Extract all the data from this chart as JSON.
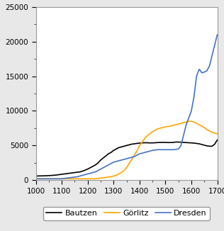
{
  "title": "",
  "xlim": [
    1000,
    1700
  ],
  "ylim": [
    0,
    25000
  ],
  "xticks": [
    1000,
    1100,
    1200,
    1300,
    1400,
    1500,
    1600,
    1700
  ],
  "yticks": [
    0,
    5000,
    10000,
    15000,
    20000,
    25000
  ],
  "background_color": "#e8e8e8",
  "plot_background": "#ffffff",
  "bautzen": {
    "color": "#000000",
    "label": "Bautzen",
    "x": [
      1000,
      1010,
      1020,
      1030,
      1040,
      1050,
      1060,
      1070,
      1080,
      1090,
      1100,
      1110,
      1120,
      1130,
      1140,
      1150,
      1160,
      1170,
      1180,
      1190,
      1200,
      1210,
      1220,
      1230,
      1240,
      1250,
      1260,
      1270,
      1280,
      1290,
      1300,
      1310,
      1320,
      1330,
      1340,
      1350,
      1360,
      1370,
      1380,
      1390,
      1400,
      1410,
      1420,
      1430,
      1440,
      1450,
      1460,
      1470,
      1480,
      1490,
      1500,
      1510,
      1520,
      1530,
      1540,
      1550,
      1560,
      1570,
      1580,
      1590,
      1600,
      1610,
      1620,
      1630,
      1640,
      1650,
      1660,
      1670,
      1680,
      1690,
      1700
    ],
    "y": [
      600,
      610,
      620,
      630,
      640,
      660,
      680,
      710,
      750,
      800,
      850,
      900,
      950,
      1000,
      1050,
      1100,
      1150,
      1200,
      1300,
      1450,
      1600,
      1800,
      2000,
      2200,
      2500,
      2900,
      3200,
      3500,
      3800,
      4000,
      4300,
      4500,
      4700,
      4800,
      4900,
      5000,
      5100,
      5200,
      5250,
      5300,
      5350,
      5380,
      5400,
      5400,
      5380,
      5380,
      5400,
      5430,
      5450,
      5450,
      5450,
      5430,
      5430,
      5450,
      5500,
      5500,
      5480,
      5450,
      5430,
      5400,
      5380,
      5350,
      5300,
      5250,
      5150,
      5050,
      4950,
      4900,
      4900,
      5200,
      5800
    ]
  },
  "gorlitz": {
    "color": "#ffa500",
    "label": "Görlitz",
    "x": [
      1000,
      1010,
      1020,
      1030,
      1040,
      1050,
      1060,
      1070,
      1080,
      1090,
      1100,
      1110,
      1120,
      1130,
      1140,
      1150,
      1160,
      1170,
      1180,
      1190,
      1200,
      1210,
      1220,
      1230,
      1240,
      1250,
      1260,
      1270,
      1280,
      1290,
      1300,
      1310,
      1320,
      1330,
      1340,
      1350,
      1360,
      1370,
      1380,
      1390,
      1400,
      1410,
      1420,
      1430,
      1440,
      1450,
      1460,
      1470,
      1480,
      1490,
      1500,
      1510,
      1520,
      1530,
      1540,
      1550,
      1560,
      1570,
      1580,
      1590,
      1600,
      1610,
      1620,
      1630,
      1640,
      1650,
      1660,
      1670,
      1680,
      1690,
      1700
    ],
    "y": [
      200,
      200,
      200,
      200,
      200,
      200,
      200,
      200,
      200,
      200,
      200,
      200,
      200,
      200,
      200,
      200,
      200,
      200,
      200,
      200,
      200,
      200,
      200,
      200,
      250,
      300,
      350,
      400,
      450,
      500,
      600,
      700,
      900,
      1100,
      1400,
      1800,
      2400,
      3000,
      3600,
      4200,
      5000,
      5500,
      6000,
      6400,
      6700,
      7000,
      7200,
      7400,
      7500,
      7600,
      7700,
      7750,
      7800,
      7900,
      8000,
      8100,
      8200,
      8300,
      8400,
      8500,
      8500,
      8400,
      8200,
      8000,
      7800,
      7600,
      7300,
      7100,
      6900,
      6800,
      6700
    ]
  },
  "dresden": {
    "color": "#4472c4",
    "label": "Dresden",
    "x": [
      1000,
      1010,
      1020,
      1030,
      1040,
      1050,
      1060,
      1070,
      1080,
      1090,
      1100,
      1110,
      1120,
      1130,
      1140,
      1150,
      1160,
      1170,
      1180,
      1190,
      1200,
      1210,
      1220,
      1230,
      1240,
      1250,
      1260,
      1270,
      1280,
      1290,
      1300,
      1310,
      1320,
      1330,
      1340,
      1350,
      1360,
      1370,
      1380,
      1390,
      1400,
      1410,
      1420,
      1430,
      1440,
      1450,
      1460,
      1470,
      1480,
      1490,
      1500,
      1510,
      1520,
      1530,
      1540,
      1550,
      1560,
      1570,
      1580,
      1590,
      1600,
      1610,
      1620,
      1625,
      1630,
      1635,
      1640,
      1650,
      1660,
      1670,
      1680,
      1690,
      1700
    ],
    "y": [
      200,
      200,
      200,
      200,
      200,
      200,
      200,
      200,
      200,
      200,
      200,
      250,
      300,
      350,
      400,
      450,
      500,
      600,
      700,
      800,
      900,
      1000,
      1100,
      1200,
      1400,
      1600,
      1800,
      2000,
      2200,
      2400,
      2600,
      2700,
      2800,
      2900,
      3000,
      3100,
      3200,
      3300,
      3400,
      3600,
      3800,
      3900,
      4000,
      4100,
      4200,
      4300,
      4350,
      4400,
      4400,
      4400,
      4400,
      4400,
      4400,
      4400,
      4450,
      4500,
      5000,
      6500,
      8000,
      9000,
      10000,
      12000,
      15000,
      15500,
      16000,
      15800,
      15500,
      15600,
      15800,
      16500,
      18000,
      19500,
      21000
    ]
  },
  "legend_fontsize": 8,
  "tick_fontsize": 7.5,
  "border_color": "#999999",
  "linewidth": 1.2
}
